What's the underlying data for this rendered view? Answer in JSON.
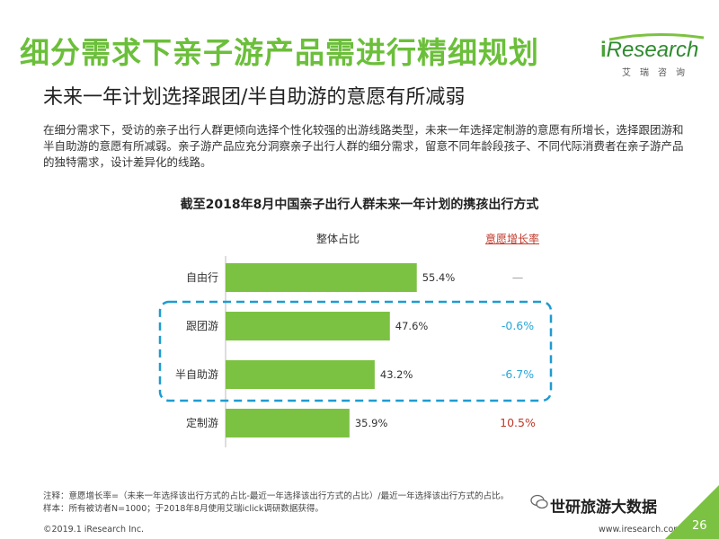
{
  "header": {
    "title": "细分需求下亲子游产品需进行精细规划",
    "subtitle": "未来一年计划选择跟团/半自助游的意愿有所减弱",
    "logo_brand_i": "i",
    "logo_brand_rest": "Research",
    "logo_cn": "艾瑞咨询"
  },
  "description": "在细分需求下，受访的亲子出行人群更倾向选择个性化较强的出游线路类型，未来一年选择定制游的意愿有所增长，选择跟团游和半自助游的意愿有所减弱。亲子游产品应充分洞察亲子出行人群的细分需求，留意不同年龄段孩子、不同代际消费者在亲子游产品的独特需求，设计差异化的线路。",
  "chart_data": {
    "type": "bar",
    "orientation": "horizontal",
    "title": "截至2018年8月中国亲子出行人群未来一年计划的携孩出行方式",
    "column_headers": {
      "share": "整体占比",
      "rate": "意愿增长率"
    },
    "categories": [
      "自由行",
      "跟团游",
      "半自助游",
      "定制游"
    ],
    "values": [
      55.4,
      47.6,
      43.2,
      35.9
    ],
    "value_labels": [
      "55.4%",
      "47.6%",
      "43.2%",
      "35.9%"
    ],
    "growth_rates": [
      "—",
      "-0.6%",
      "-6.7%",
      "10.5%"
    ],
    "growth_colors": [
      "#999999",
      "#2aa7d8",
      "#2aa7d8",
      "#c0392b"
    ],
    "bar_color": "#7cc242",
    "highlight_color": "#1f9bd1",
    "highlighted_categories": [
      "跟团游",
      "半自助游"
    ],
    "xlim": [
      0,
      100
    ]
  },
  "footer": {
    "note_line1": "注释：意愿增长率=（未来一年选择该出行方式的占比-最近一年选择该出行方式的占比）/最近一年选择该出行方式的占比。",
    "note_line2": "样本：所有被访者N=1000；于2018年8月使用艾瑞iclick调研数据获得。",
    "copyright": "©2019.1 iResearch Inc.",
    "site": "www.iresearch.com.cn",
    "page_number": "26",
    "watermark": "世研旅游大数据"
  }
}
